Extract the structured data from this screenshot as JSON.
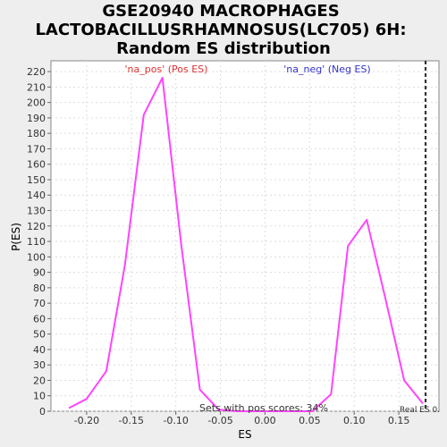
{
  "chart_data": {
    "type": "line",
    "title_lines": [
      "GSE20940 MACROPHAGES",
      "LACTOBACILLUSRHAMNOSUS(LC705) 6H:",
      "Random ES distribution"
    ],
    "xlabel": "ES",
    "ylabel": "P(ES)",
    "xlim": [
      -0.24,
      0.195
    ],
    "ylim": [
      0,
      227
    ],
    "xticks": [
      -0.2,
      -0.15,
      -0.1,
      -0.05,
      0.0,
      0.05,
      0.1,
      0.15
    ],
    "xtick_labels": [
      "-0.20",
      "-0.15",
      "-0.10",
      "-0.05",
      "0.00",
      "0.05",
      "0.10",
      "0.15"
    ],
    "yticks": [
      0,
      10,
      20,
      30,
      40,
      50,
      60,
      70,
      80,
      90,
      100,
      110,
      120,
      130,
      140,
      150,
      160,
      170,
      180,
      190,
      200,
      210,
      220
    ],
    "grid": true,
    "series": [
      {
        "color": "#ff44ff",
        "x": [
          -0.22,
          -0.2,
          -0.178,
          -0.157,
          -0.136,
          -0.115,
          -0.094,
          -0.073,
          -0.052,
          -0.031,
          -0.01,
          0.011,
          0.032,
          0.053,
          0.074,
          0.093,
          0.114,
          0.135,
          0.156,
          0.177
        ],
        "y": [
          2,
          8,
          26,
          95,
          192,
          216,
          108,
          14,
          1,
          0,
          0,
          0,
          0,
          0,
          11,
          107,
          124,
          73,
          20,
          5
        ]
      }
    ],
    "annotations": {
      "pos_label": "'na_pos' (Pos ES)",
      "neg_label": "'na_neg' (Neg ES)",
      "pos_color": "#dd3333",
      "neg_color": "#3333cc",
      "pos_scores_text": "Sets with pos scores: 34%",
      "real_es_label": "Real ES 0.",
      "real_es_value": 0.18
    }
  }
}
